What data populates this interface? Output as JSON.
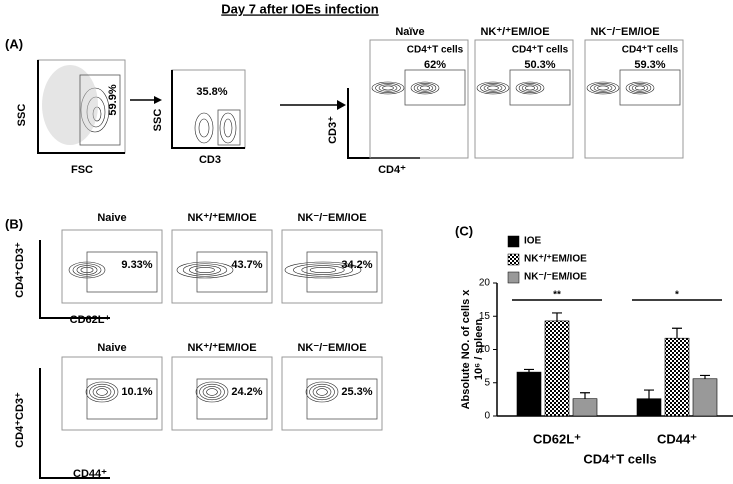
{
  "title": "Day 7 after IOEs infection",
  "panel_a": {
    "label": "(A)",
    "plot1": {
      "y_label": "SSC",
      "x_label": "FSC",
      "gate_value": "59.9%"
    },
    "plot2": {
      "y_label": "SSC",
      "x_label": "CD3",
      "gate_value": "35.8%"
    },
    "y_label": "CD3⁺",
    "x_label": "CD4⁺",
    "groups": [
      {
        "name": "Naïve",
        "gate_label": "CD4⁺T cells",
        "gate_value": "62%"
      },
      {
        "name": "NK⁺/⁺EM/IOE",
        "gate_label": "CD4⁺T cells",
        "gate_value": "50.3%"
      },
      {
        "name": "NK⁻/⁻EM/IOE",
        "gate_label": "CD4⁺T cells",
        "gate_value": "59.3%"
      }
    ]
  },
  "panel_b": {
    "label": "(B)",
    "rows": [
      {
        "y_label": "CD4⁺CD3⁺",
        "x_label": "CD62L⁺",
        "groups": [
          {
            "name": "Naive",
            "gate_value": "9.33%"
          },
          {
            "name": "NK⁺/⁺EM/IOE",
            "gate_value": "43.7%"
          },
          {
            "name": "NK⁻/⁻EM/IOE",
            "gate_value": "34.2%"
          }
        ]
      },
      {
        "y_label": "CD4⁺CD3⁺",
        "x_label": "CD44⁺",
        "groups": [
          {
            "name": "Naive",
            "gate_value": "10.1%"
          },
          {
            "name": "NK⁺/⁺EM/IOE",
            "gate_value": "24.2%"
          },
          {
            "name": "NK⁻/⁻EM/IOE",
            "gate_value": "25.3%"
          }
        ]
      }
    ]
  },
  "chart_data": {
    "type": "bar",
    "label": "(C)",
    "x_label": "CD4⁺T cells",
    "y_label": [
      "Absolute NO. of cells x",
      "10⁶ / spleen"
    ],
    "categories": [
      "CD62L⁺",
      "CD44⁺"
    ],
    "series": [
      {
        "name": "IOE",
        "color": "#000000",
        "values": [
          6.6,
          2.6
        ],
        "errors": [
          0.4,
          1.3
        ]
      },
      {
        "name": "NK⁺/⁺EM/IOE",
        "color": "checkered",
        "values": [
          14.3,
          11.7
        ],
        "errors": [
          1.2,
          1.5
        ]
      },
      {
        "name": "NK⁻/⁻EM/IOE",
        "color": "#999999",
        "values": [
          2.6,
          5.6
        ],
        "errors": [
          0.9,
          0.5
        ]
      }
    ],
    "annotations": [
      "**",
      "*"
    ],
    "ylim": [
      0,
      20
    ],
    "yticks": [
      0,
      5,
      10,
      15,
      20
    ]
  }
}
